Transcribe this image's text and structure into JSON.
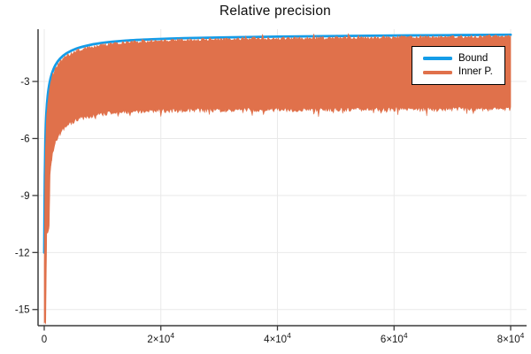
{
  "chart_data": {
    "type": "area",
    "title": "Relative precision",
    "xlabel": "",
    "ylabel": "",
    "xlim": [
      -1060,
      82730
    ],
    "ylim": [
      -15.85,
      -0.25
    ],
    "grid": true,
    "legend_position": "top-right",
    "axis_color": "#3b3b3b",
    "grid_color": "#e9e9e9",
    "tick_label_color": "#161616",
    "xticks": [
      {
        "value": 0,
        "base": "0",
        "exp": ""
      },
      {
        "value": 20000,
        "base": "2×10",
        "exp": "4"
      },
      {
        "value": 40000,
        "base": "4×10",
        "exp": "4"
      },
      {
        "value": 60000,
        "base": "6×10",
        "exp": "4"
      },
      {
        "value": 80000,
        "base": "8×10",
        "exp": "4"
      }
    ],
    "yticks": [
      {
        "value": -3,
        "label": "-3"
      },
      {
        "value": -6,
        "label": "-6"
      },
      {
        "value": -9,
        "label": "-9"
      },
      {
        "value": -12,
        "label": "-12"
      },
      {
        "value": -15,
        "label": "-15"
      }
    ],
    "series": [
      {
        "name": "Bound",
        "type": "line",
        "color": "#149ce8",
        "stroke_width": 2.8,
        "points": [
          [
            0,
            -12.0
          ],
          [
            100,
            -8.0
          ],
          [
            220,
            -5.9
          ],
          [
            380,
            -4.6
          ],
          [
            600,
            -3.75
          ],
          [
            900,
            -3.1
          ],
          [
            1300,
            -2.6
          ],
          [
            1900,
            -2.15
          ],
          [
            2700,
            -1.8
          ],
          [
            3800,
            -1.52
          ],
          [
            5500,
            -1.27
          ],
          [
            7800,
            -1.08
          ],
          [
            10500,
            -0.95
          ],
          [
            14000,
            -0.85
          ],
          [
            18500,
            -0.78
          ],
          [
            24000,
            -0.72
          ],
          [
            31000,
            -0.68
          ],
          [
            40000,
            -0.64
          ],
          [
            50000,
            -0.61
          ],
          [
            62000,
            -0.58
          ],
          [
            80000,
            -0.54
          ]
        ]
      },
      {
        "name": "Inner P.",
        "type": "band",
        "color": "#e0714b",
        "upper": [
          [
            0,
            -12.6
          ],
          [
            100,
            -8.6
          ],
          [
            220,
            -6.4
          ],
          [
            380,
            -5.0
          ],
          [
            600,
            -4.1
          ],
          [
            900,
            -3.4
          ],
          [
            1300,
            -2.85
          ],
          [
            1900,
            -2.35
          ],
          [
            2700,
            -1.97
          ],
          [
            3800,
            -1.67
          ],
          [
            5500,
            -1.4
          ],
          [
            7800,
            -1.2
          ],
          [
            10500,
            -1.06
          ],
          [
            14000,
            -0.96
          ],
          [
            18500,
            -0.88
          ],
          [
            24000,
            -0.82
          ],
          [
            31000,
            -0.78
          ],
          [
            40000,
            -0.74
          ],
          [
            50000,
            -0.71
          ],
          [
            62000,
            -0.68
          ],
          [
            80000,
            -0.64
          ]
        ],
        "lower": [
          [
            0,
            -15.7
          ],
          [
            260,
            -15.7
          ],
          [
            350,
            -13.0
          ],
          [
            430,
            -11.0
          ],
          [
            850,
            -10.7
          ],
          [
            1000,
            -7.9
          ],
          [
            1400,
            -6.85
          ],
          [
            1900,
            -6.2
          ],
          [
            2600,
            -5.7
          ],
          [
            4000,
            -5.3
          ],
          [
            6000,
            -4.95
          ],
          [
            9000,
            -4.75
          ],
          [
            13000,
            -4.62
          ],
          [
            18000,
            -4.56
          ],
          [
            25000,
            -4.51
          ],
          [
            35000,
            -4.49
          ],
          [
            50000,
            -4.47
          ],
          [
            65000,
            -4.46
          ],
          [
            80000,
            -4.43
          ]
        ],
        "noise": {
          "seed": 11,
          "top_amp": 0.09,
          "bottom_amp": 0.12,
          "top_spike": 0.22,
          "bottom_spike": 0.3,
          "top_spike_rate": 0.035,
          "bottom_spike_rate": 0.06
        }
      }
    ]
  }
}
